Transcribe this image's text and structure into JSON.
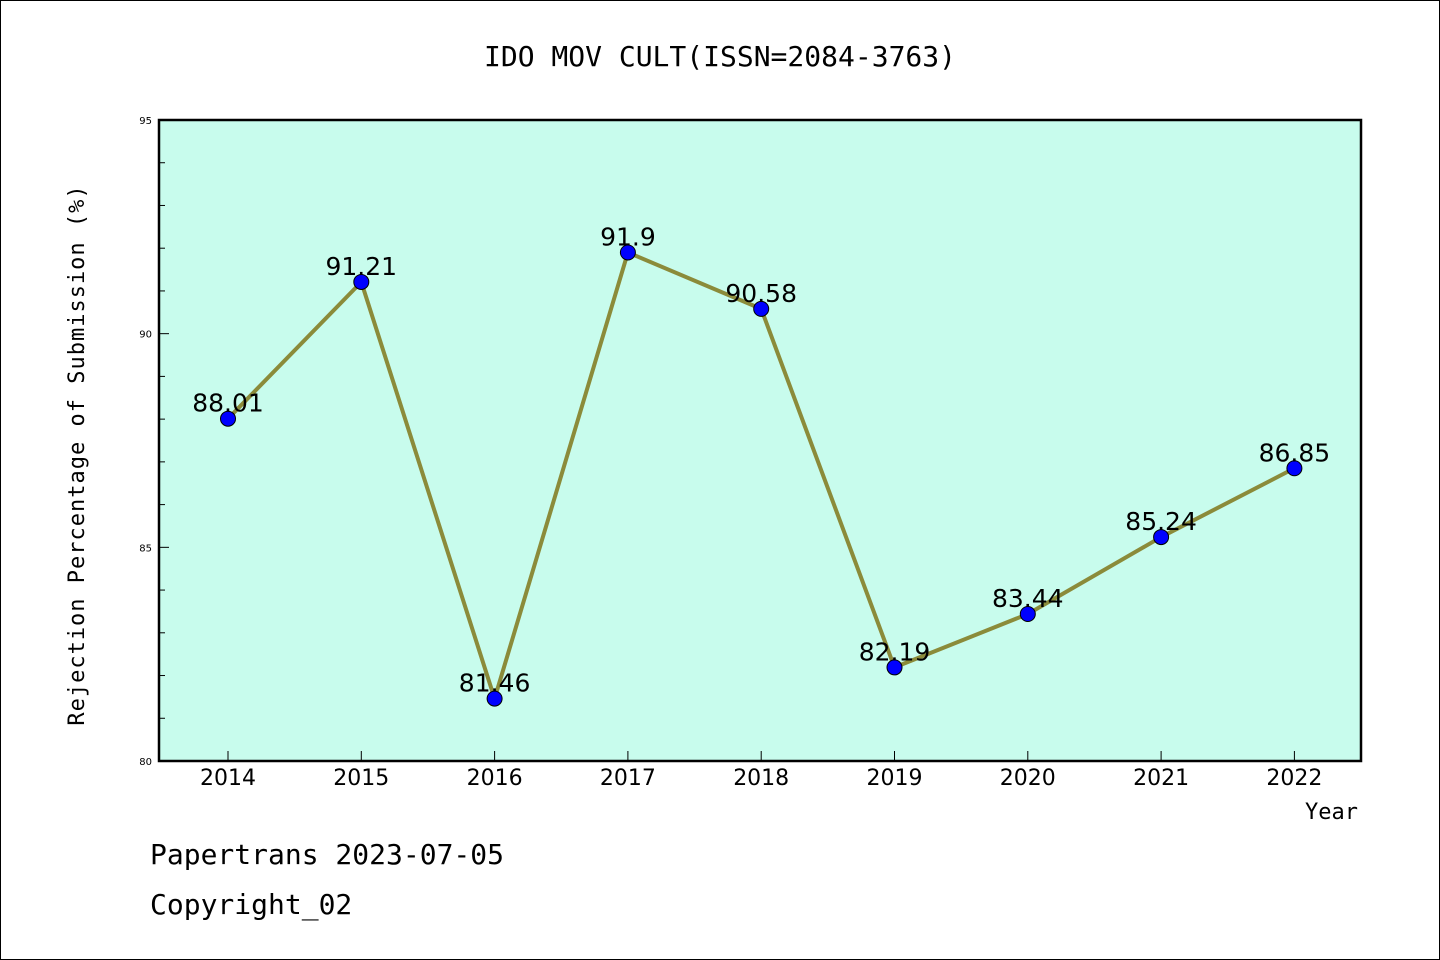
{
  "chart_data": {
    "type": "line",
    "title": "IDO MOV CULT(ISSN=2084-3763)",
    "xlabel": "Year",
    "ylabel": "Rejection Percentage of Submission (%)",
    "categories": [
      "2014",
      "2015",
      "2016",
      "2017",
      "2018",
      "2019",
      "2020",
      "2021",
      "2022"
    ],
    "values": [
      88.01,
      91.21,
      81.46,
      91.9,
      90.58,
      82.19,
      83.44,
      85.24,
      86.85
    ],
    "data_labels": [
      "88.01",
      "91.21",
      "81.46",
      "91.9",
      "90.58",
      "82.19",
      "83.44",
      "85.24",
      "86.85"
    ],
    "ylim": [
      80,
      95
    ],
    "yticks": [
      80,
      85,
      90,
      95
    ],
    "ytick_labels": [
      "80",
      "85",
      "90",
      "95"
    ],
    "grid": false,
    "colors": {
      "plot_background": "#c8fced",
      "line": "#8b8b3a",
      "marker": "#0000ff"
    }
  },
  "footer": {
    "line1": "Papertrans 2023-07-05",
    "line2": "Copyright_02"
  }
}
